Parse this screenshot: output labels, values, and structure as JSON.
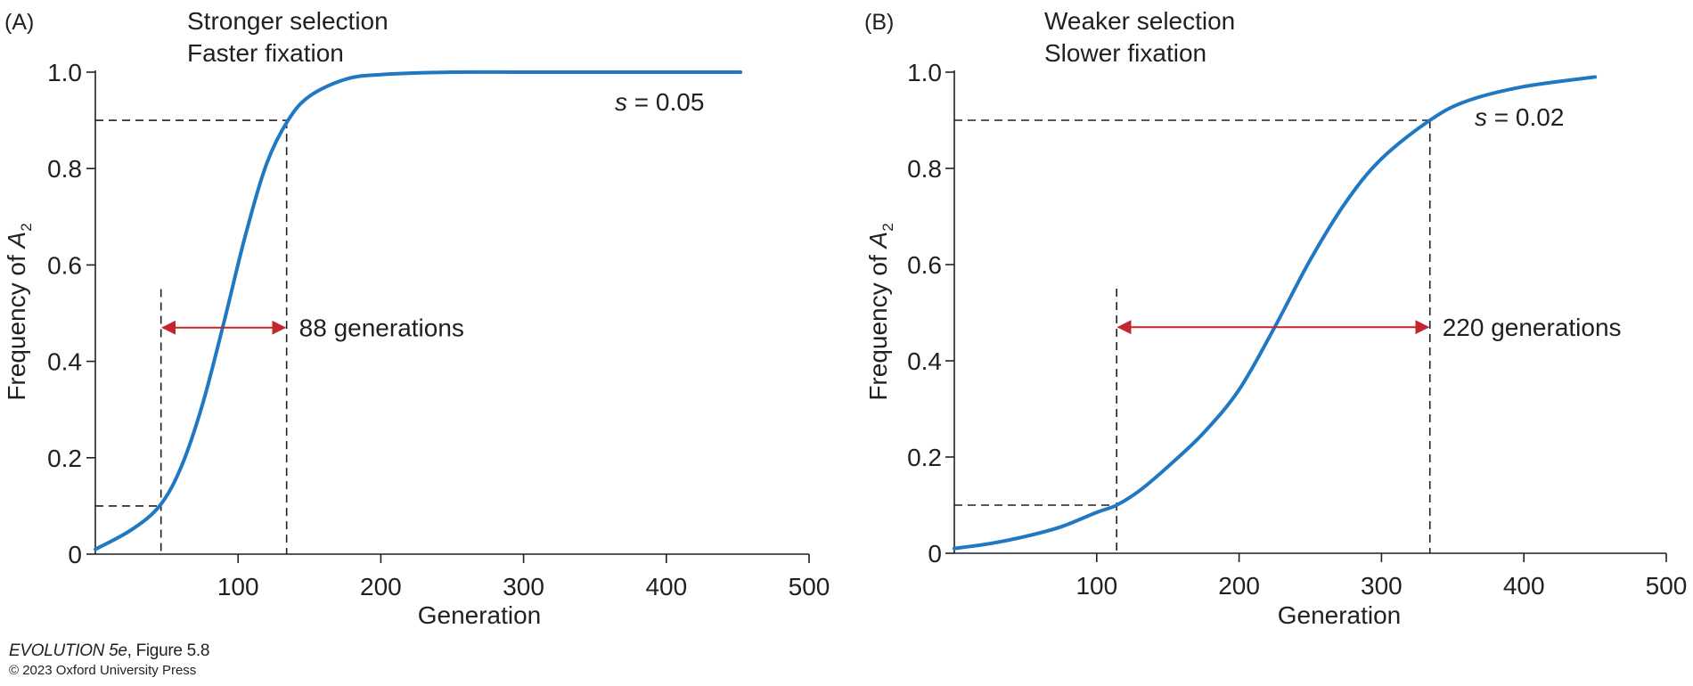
{
  "chart_data": [
    {
      "panel_label": "(A)",
      "type": "line",
      "title": "Stronger selection",
      "subtitle": "Faster fixation",
      "xlabel": "Generation",
      "ylabel": "Frequency of A",
      "ylabel_subscript": "2",
      "xlim": [
        0,
        500
      ],
      "ylim": [
        0,
        1.0
      ],
      "xticks": [
        100,
        200,
        300,
        400,
        500
      ],
      "xtick_labels": [
        "100",
        "200",
        "300",
        "400",
        "500"
      ],
      "yticks": [
        0,
        0.2,
        0.4,
        0.6,
        0.8,
        1.0
      ],
      "ytick_labels": [
        "0",
        "0.2",
        "0.4",
        "0.6",
        "0.8",
        "1.0"
      ],
      "grid": false,
      "series": [
        {
          "s": 0.05,
          "label_symbol": "s",
          "label_value": " = 0.05",
          "color": "#1f78c1",
          "x": [
            0,
            25,
            45,
            60,
            75,
            90,
            105,
            120,
            135,
            150,
            175,
            200,
            250,
            300,
            350,
            400,
            452
          ],
          "y": [
            0.01,
            0.05,
            0.1,
            0.18,
            0.31,
            0.48,
            0.66,
            0.81,
            0.9,
            0.95,
            0.985,
            0.995,
            1.0,
            1.0,
            1.0,
            1.0,
            1.0
          ]
        }
      ],
      "reference_lines": {
        "x": [
          46,
          134
        ],
        "y": [
          0.1,
          0.9
        ]
      },
      "annotation": {
        "from_x": 46,
        "to_x": 134,
        "y": 0.47,
        "text": "88 generations",
        "color": "#c1272d"
      }
    },
    {
      "panel_label": "(B)",
      "type": "line",
      "title": "Weaker selection",
      "subtitle": "Slower fixation",
      "xlabel": "Generation",
      "ylabel": "Frequency of A",
      "ylabel_subscript": "2",
      "xlim": [
        0,
        500
      ],
      "ylim": [
        0,
        1.0
      ],
      "xticks": [
        100,
        200,
        300,
        400,
        500
      ],
      "xtick_labels": [
        "100",
        "200",
        "300",
        "400",
        "500"
      ],
      "yticks": [
        0,
        0.2,
        0.4,
        0.6,
        0.8,
        1.0
      ],
      "ytick_labels": [
        "0",
        "0.2",
        "0.4",
        "0.6",
        "0.8",
        "1.0"
      ],
      "grid": false,
      "series": [
        {
          "s": 0.02,
          "label_symbol": "s",
          "label_value": " = 0.02",
          "color": "#1f78c1",
          "x": [
            0,
            25,
            50,
            75,
            100,
            114,
            130,
            150,
            175,
            200,
            225,
            250,
            275,
            300,
            334,
            360,
            400,
            450
          ],
          "y": [
            0.01,
            0.02,
            0.035,
            0.055,
            0.085,
            0.1,
            0.13,
            0.18,
            0.25,
            0.34,
            0.47,
            0.61,
            0.73,
            0.82,
            0.9,
            0.94,
            0.97,
            0.99
          ]
        }
      ],
      "reference_lines": {
        "x": [
          114,
          334
        ],
        "y": [
          0.1,
          0.9
        ]
      },
      "annotation": {
        "from_x": 114,
        "to_x": 334,
        "y": 0.47,
        "text": "220 generations",
        "color": "#c1272d"
      }
    }
  ],
  "footer": {
    "book": "EVOLUTION 5e",
    "figure": ", Figure 5.8",
    "copyright": "© 2023 Oxford University Press"
  }
}
